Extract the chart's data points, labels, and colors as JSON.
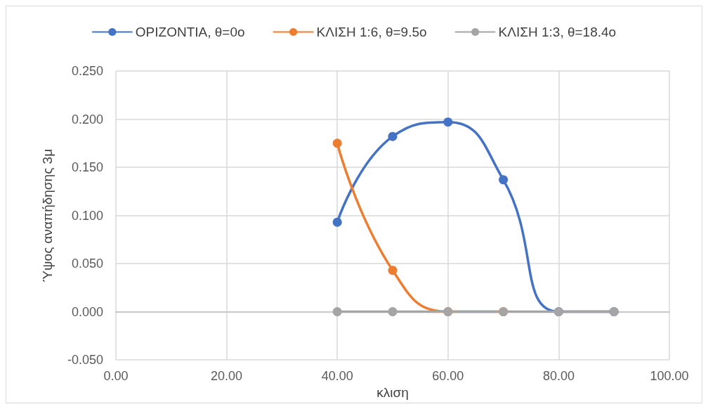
{
  "chart_data": {
    "type": "line",
    "xlabel": "κλιση",
    "ylabel": "Ύψος αναπήδησης 3μ",
    "series": [
      {
        "name": "ΟΡΙΖΟΝΤΙΑ, θ=0o",
        "color": "#4472c4",
        "x": [
          40,
          50,
          60,
          70,
          80,
          90
        ],
        "values": [
          0.093,
          0.182,
          0.197,
          0.137,
          0,
          0
        ]
      },
      {
        "name": "ΚΛΙΣΗ 1:6, θ=9.5o",
        "color": "#ed7d31",
        "x": [
          40,
          50,
          60,
          70
        ],
        "values": [
          0.175,
          0.043,
          0,
          0
        ]
      },
      {
        "name": "ΚΛΙΣΗ 1:3, θ=18.4o",
        "color": "#a5a5a5",
        "x": [
          40,
          50,
          60,
          70,
          80,
          90
        ],
        "values": [
          0,
          0,
          0,
          0,
          0,
          0
        ]
      }
    ],
    "xlim": [
      0,
      100
    ],
    "xticks": [
      {
        "value": 0,
        "label": "0.00"
      },
      {
        "value": 20,
        "label": "20.00"
      },
      {
        "value": 40,
        "label": "40.00"
      },
      {
        "value": 60,
        "label": "60.00"
      },
      {
        "value": 80,
        "label": "80.00"
      },
      {
        "value": 100,
        "label": "100.00"
      }
    ],
    "ylim": [
      -0.05,
      0.25
    ],
    "yticks": [
      {
        "value": -0.05,
        "label": "-0.050"
      },
      {
        "value": 0,
        "label": "0.000"
      },
      {
        "value": 0.05,
        "label": "0.050"
      },
      {
        "value": 0.1,
        "label": "0.100"
      },
      {
        "value": 0.15,
        "label": "0.150"
      },
      {
        "value": 0.2,
        "label": "0.200"
      },
      {
        "value": 0.25,
        "label": "0.250"
      }
    ],
    "grid": true,
    "legend": "top",
    "marker": "circle",
    "line_style": "solid"
  }
}
